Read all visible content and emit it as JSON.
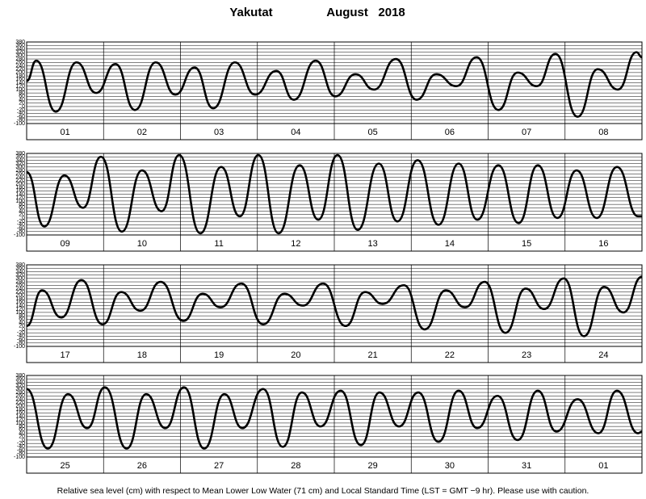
{
  "title": {
    "station": "Yakutat",
    "date": "August   2018"
  },
  "note": "Relative sea level (cm) with respect to Mean Lower Low Water (71 cm) and Local Standard Time (LST = GMT −9 hr). Please use with caution.",
  "chart_data": [
    {
      "type": "line",
      "categories": [
        "01",
        "02",
        "03",
        "04",
        "05",
        "06",
        "07",
        "08"
      ],
      "xlim": [
        0,
        192
      ],
      "ylim": [
        -100,
        380
      ],
      "yticks": [
        380,
        360,
        340,
        320,
        300,
        280,
        260,
        240,
        220,
        200,
        180,
        160,
        140,
        120,
        100,
        80,
        60,
        40,
        20,
        0,
        -20,
        -40,
        -60,
        -80,
        -100
      ],
      "grid": true,
      "color": "#000000",
      "x": [
        0,
        3,
        9.1,
        15.6,
        21.7,
        27.7,
        33.8,
        40.3,
        46.4,
        52.4,
        58.2,
        65,
        71.3,
        77.9,
        83.4,
        90.2,
        96.3,
        102.6,
        108.4,
        115.2,
        121.7,
        127.8,
        134.1,
        140.4,
        147.2,
        153.2,
        159.2,
        165,
        171.9,
        178.2,
        184.5,
        190.3,
        192
      ],
      "values": [
        150,
        270,
        -30,
        260,
        80,
        250,
        -20,
        260,
        70,
        230,
        -10,
        260,
        70,
        210,
        40,
        270,
        60,
        190,
        100,
        280,
        40,
        190,
        120,
        290,
        -20,
        200,
        120,
        310,
        -60,
        220,
        100,
        320,
        290
      ]
    },
    {
      "type": "line",
      "categories": [
        "09",
        "10",
        "11",
        "12",
        "13",
        "14",
        "15",
        "16"
      ],
      "xlim": [
        0,
        192
      ],
      "ylim": [
        -100,
        380
      ],
      "yticks": [
        380,
        360,
        340,
        320,
        300,
        280,
        260,
        240,
        220,
        200,
        180,
        160,
        140,
        120,
        100,
        80,
        60,
        40,
        20,
        0,
        -20,
        -40,
        -60,
        -80,
        -100
      ],
      "grid": true,
      "color": "#000000",
      "x": [
        0,
        5.5,
        11.8,
        17.6,
        23.2,
        29.7,
        36,
        42.1,
        47.6,
        54.2,
        60.7,
        66.5,
        72.3,
        78.6,
        85.2,
        91,
        97,
        103.3,
        109.9,
        115.7,
        122,
        128.5,
        134.8,
        140.6,
        147.2,
        153.5,
        159.5,
        165.6,
        171.6,
        177.9,
        184.2,
        190.8,
        192
      ],
      "values": [
        270,
        -50,
        250,
        60,
        360,
        -80,
        280,
        40,
        370,
        -90,
        300,
        10,
        370,
        -90,
        310,
        -10,
        370,
        -70,
        320,
        -20,
        340,
        -40,
        320,
        -10,
        310,
        -30,
        310,
        0,
        280,
        0,
        300,
        10,
        10
      ]
    },
    {
      "type": "line",
      "categories": [
        "17",
        "18",
        "19",
        "20",
        "21",
        "22",
        "23",
        "24"
      ],
      "xlim": [
        0,
        192
      ],
      "ylim": [
        -100,
        380
      ],
      "yticks": [
        380,
        360,
        340,
        320,
        300,
        280,
        260,
        240,
        220,
        200,
        180,
        160,
        140,
        120,
        100,
        80,
        60,
        40,
        20,
        0,
        -20,
        -40,
        -60,
        -80,
        -100
      ],
      "grid": true,
      "color": "#000000",
      "x": [
        0,
        4.8,
        10.8,
        17.1,
        23.7,
        29.5,
        35.5,
        41.8,
        48.9,
        54.9,
        60.5,
        67,
        73.8,
        80.4,
        86.2,
        92.5,
        99.5,
        105.6,
        111.1,
        117.7,
        124.2,
        130.8,
        136.8,
        142.9,
        149.4,
        155.7,
        161.5,
        167.6,
        173.9,
        180.2,
        186.2,
        192
      ],
      "values": [
        20,
        230,
        70,
        290,
        30,
        220,
        110,
        280,
        50,
        210,
        130,
        270,
        30,
        210,
        140,
        270,
        20,
        220,
        150,
        260,
        0,
        230,
        130,
        280,
        -20,
        240,
        120,
        300,
        -40,
        250,
        100,
        310
      ]
    },
    {
      "type": "line",
      "categories": [
        "25",
        "26",
        "27",
        "28",
        "29",
        "30",
        "31",
        "01"
      ],
      "xlim": [
        0,
        192
      ],
      "ylim": [
        -100,
        380
      ],
      "yticks": [
        380,
        360,
        340,
        320,
        300,
        280,
        260,
        240,
        220,
        200,
        180,
        160,
        140,
        120,
        100,
        80,
        60,
        40,
        20,
        0,
        -20,
        -40,
        -60,
        -80,
        -100
      ],
      "grid": true,
      "color": "#000000",
      "x": [
        0,
        6.6,
        12.9,
        18.9,
        24.4,
        31.2,
        37.3,
        43.3,
        49.1,
        55.4,
        61.7,
        67.3,
        73.8,
        79.9,
        85.9,
        91.7,
        98,
        104.3,
        110.1,
        116.2,
        122.2,
        128.5,
        134.8,
        140.6,
        146.9,
        153.2,
        159.5,
        165.3,
        171.9,
        178.4,
        184.2,
        190.8,
        192
      ],
      "values": [
        300,
        -50,
        270,
        70,
        310,
        -50,
        270,
        70,
        310,
        -50,
        270,
        70,
        300,
        -40,
        280,
        80,
        290,
        -30,
        280,
        80,
        280,
        -10,
        290,
        70,
        260,
        0,
        290,
        50,
        240,
        40,
        290,
        40,
        50
      ]
    }
  ]
}
